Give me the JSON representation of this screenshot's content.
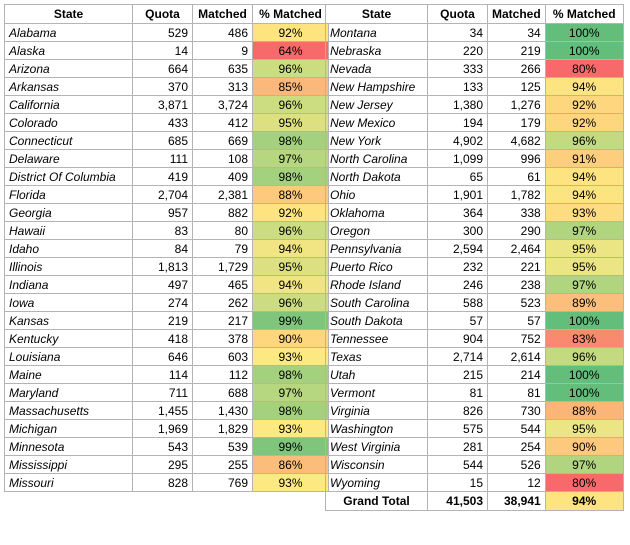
{
  "headers": [
    "State",
    "Quota",
    "Matched",
    "% Matched"
  ],
  "left_rows": [
    {
      "state": "Alabama",
      "quota": "529",
      "matched": "486",
      "pct": "92%",
      "color": "#fde47f"
    },
    {
      "state": "Alaska",
      "quota": "14",
      "matched": "9",
      "pct": "64%",
      "color": "#f8696b"
    },
    {
      "state": "Arizona",
      "quota": "664",
      "matched": "635",
      "pct": "96%",
      "color": "#cbdc81"
    },
    {
      "state": "Arkansas",
      "quota": "370",
      "matched": "313",
      "pct": "85%",
      "color": "#fcb77a"
    },
    {
      "state": "California",
      "quota": "3,871",
      "matched": "3,724",
      "pct": "96%",
      "color": "#cbdc81"
    },
    {
      "state": "Colorado",
      "quota": "433",
      "matched": "412",
      "pct": "95%",
      "color": "#dde082"
    },
    {
      "state": "Connecticut",
      "quota": "685",
      "matched": "669",
      "pct": "98%",
      "color": "#a4d17e"
    },
    {
      "state": "Delaware",
      "quota": "111",
      "matched": "108",
      "pct": "97%",
      "color": "#b6d67f"
    },
    {
      "state": "District Of Columbia",
      "quota": "419",
      "matched": "409",
      "pct": "98%",
      "color": "#a4d17e"
    },
    {
      "state": "Florida",
      "quota": "2,704",
      "matched": "2,381",
      "pct": "88%",
      "color": "#fdc97c"
    },
    {
      "state": "Georgia",
      "quota": "957",
      "matched": "882",
      "pct": "92%",
      "color": "#fde47f"
    },
    {
      "state": "Hawaii",
      "quota": "83",
      "matched": "80",
      "pct": "96%",
      "color": "#cbdc81"
    },
    {
      "state": "Idaho",
      "quota": "84",
      "matched": "79",
      "pct": "94%",
      "color": "#f0e483"
    },
    {
      "state": "Illinois",
      "quota": "1,813",
      "matched": "1,729",
      "pct": "95%",
      "color": "#dde082"
    },
    {
      "state": "Indiana",
      "quota": "497",
      "matched": "465",
      "pct": "94%",
      "color": "#f0e483"
    },
    {
      "state": "Iowa",
      "quota": "274",
      "matched": "262",
      "pct": "96%",
      "color": "#cbdc81"
    },
    {
      "state": "Kansas",
      "quota": "219",
      "matched": "217",
      "pct": "99%",
      "color": "#7fc57c"
    },
    {
      "state": "Kentucky",
      "quota": "418",
      "matched": "378",
      "pct": "90%",
      "color": "#fdd67e"
    },
    {
      "state": "Louisiana",
      "quota": "646",
      "matched": "603",
      "pct": "93%",
      "color": "#fde982"
    },
    {
      "state": "Maine",
      "quota": "114",
      "matched": "112",
      "pct": "98%",
      "color": "#a4d17e"
    },
    {
      "state": "Maryland",
      "quota": "711",
      "matched": "688",
      "pct": "97%",
      "color": "#b6d67f"
    },
    {
      "state": "Massachusetts",
      "quota": "1,455",
      "matched": "1,430",
      "pct": "98%",
      "color": "#a4d17e"
    },
    {
      "state": "Michigan",
      "quota": "1,969",
      "matched": "1,829",
      "pct": "93%",
      "color": "#fde982"
    },
    {
      "state": "Minnesota",
      "quota": "543",
      "matched": "539",
      "pct": "99%",
      "color": "#7fc57c"
    },
    {
      "state": "Mississippi",
      "quota": "295",
      "matched": "255",
      "pct": "86%",
      "color": "#fcbd7b"
    },
    {
      "state": "Missouri",
      "quota": "828",
      "matched": "769",
      "pct": "93%",
      "color": "#fde982"
    }
  ],
  "right_rows": [
    {
      "state": "Montana",
      "quota": "34",
      "matched": "34",
      "pct": "100%",
      "color": "#63be7b"
    },
    {
      "state": "Nebraska",
      "quota": "220",
      "matched": "219",
      "pct": "100%",
      "color": "#63be7b"
    },
    {
      "state": "Nevada",
      "quota": "333",
      "matched": "266",
      "pct": "80%",
      "color": "#f8696b"
    },
    {
      "state": "New Hampshire",
      "quota": "133",
      "matched": "125",
      "pct": "94%",
      "color": "#fde481"
    },
    {
      "state": "New Jersey",
      "quota": "1,380",
      "matched": "1,276",
      "pct": "92%",
      "color": "#fdd67e"
    },
    {
      "state": "New Mexico",
      "quota": "194",
      "matched": "179",
      "pct": "92%",
      "color": "#fdd67e"
    },
    {
      "state": "New York",
      "quota": "4,902",
      "matched": "4,682",
      "pct": "96%",
      "color": "#c4da80"
    },
    {
      "state": "North Carolina",
      "quota": "1,099",
      "matched": "996",
      "pct": "91%",
      "color": "#fdcf7d"
    },
    {
      "state": "North Dakota",
      "quota": "65",
      "matched": "61",
      "pct": "94%",
      "color": "#fde481"
    },
    {
      "state": "Ohio",
      "quota": "1,901",
      "matched": "1,782",
      "pct": "94%",
      "color": "#fde481"
    },
    {
      "state": "Oklahoma",
      "quota": "364",
      "matched": "338",
      "pct": "93%",
      "color": "#fddd80"
    },
    {
      "state": "Oregon",
      "quota": "300",
      "matched": "290",
      "pct": "97%",
      "color": "#b1d47f"
    },
    {
      "state": "Pennsylvania",
      "quota": "2,594",
      "matched": "2,464",
      "pct": "95%",
      "color": "#ebe583"
    },
    {
      "state": "Puerto Rico",
      "quota": "232",
      "matched": "221",
      "pct": "95%",
      "color": "#ebe583"
    },
    {
      "state": "Rhode Island",
      "quota": "246",
      "matched": "238",
      "pct": "97%",
      "color": "#b1d47f"
    },
    {
      "state": "South Carolina",
      "quota": "588",
      "matched": "523",
      "pct": "89%",
      "color": "#fcbf7b"
    },
    {
      "state": "South Dakota",
      "quota": "57",
      "matched": "57",
      "pct": "100%",
      "color": "#63be7b"
    },
    {
      "state": "Tennessee",
      "quota": "904",
      "matched": "752",
      "pct": "83%",
      "color": "#f9896f"
    },
    {
      "state": "Texas",
      "quota": "2,714",
      "matched": "2,614",
      "pct": "96%",
      "color": "#c4da80"
    },
    {
      "state": "Utah",
      "quota": "215",
      "matched": "214",
      "pct": "100%",
      "color": "#63be7b"
    },
    {
      "state": "Vermont",
      "quota": "81",
      "matched": "81",
      "pct": "100%",
      "color": "#63be7b"
    },
    {
      "state": "Virginia",
      "quota": "826",
      "matched": "730",
      "pct": "88%",
      "color": "#fbb579"
    },
    {
      "state": "Washington",
      "quota": "575",
      "matched": "544",
      "pct": "95%",
      "color": "#ebe583"
    },
    {
      "state": "West Virginia",
      "quota": "281",
      "matched": "254",
      "pct": "90%",
      "color": "#fdc97c"
    },
    {
      "state": "Wisconsin",
      "quota": "544",
      "matched": "526",
      "pct": "97%",
      "color": "#b1d47f"
    },
    {
      "state": "Wyoming",
      "quota": "15",
      "matched": "12",
      "pct": "80%",
      "color": "#f8696b"
    }
  ],
  "grand_total": {
    "label": "Grand Total",
    "quota": "41,503",
    "matched": "38,941",
    "pct": "94%",
    "color": "#fde481"
  }
}
